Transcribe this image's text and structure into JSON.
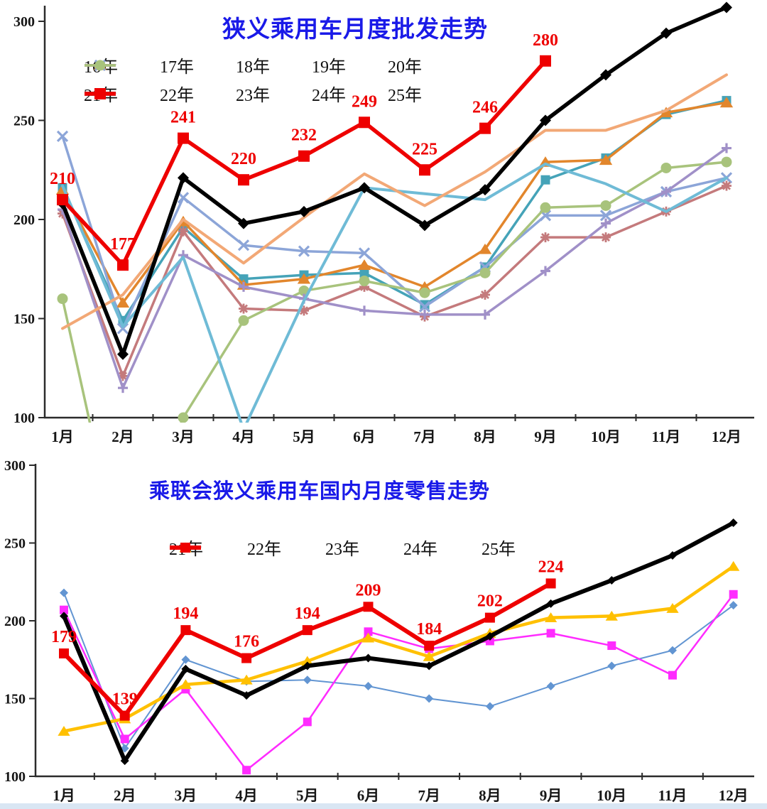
{
  "footer_bar_color": "#d9e6f3",
  "charts": [
    {
      "title": "狭义乘用车月度批发走势",
      "title_color": "#1a1ae8",
      "label_color": "#ee0000",
      "months": [
        "1月",
        "2月",
        "3月",
        "4月",
        "5月",
        "6月",
        "7月",
        "8月",
        "9月",
        "10月",
        "11月",
        "12月"
      ],
      "y_ticks": [
        100,
        150,
        200,
        250,
        300
      ],
      "series": [
        {
          "name": "16年",
          "color": "#45a3b8",
          "marker": "square",
          "msize": 6.5,
          "width": 3.5,
          "values": [
            216,
            149,
            196,
            170,
            172,
            173,
            157,
            176,
            220,
            231,
            253,
            260
          ]
        },
        {
          "name": "17年",
          "color": "#e2862c",
          "marker": "triangle",
          "msize": 8,
          "width": 3.5,
          "values": [
            215,
            158,
            199,
            167,
            170,
            177,
            166,
            185,
            229,
            230,
            254,
            259
          ]
        },
        {
          "name": "18年",
          "color": "#8ca5d8",
          "marker": "x",
          "msize": 7,
          "width": 3.5,
          "values": [
            242,
            145,
            211,
            187,
            184,
            183,
            156,
            176,
            202,
            202,
            214,
            221
          ]
        },
        {
          "name": "19年",
          "color": "#c47a7c",
          "marker": "asterisk",
          "msize": 7,
          "width": 3.5,
          "values": [
            203,
            121,
            194,
            155,
            154,
            166,
            151,
            162,
            191,
            191,
            204,
            217
          ]
        },
        {
          "name": "20年",
          "color": "#a8c37c",
          "marker": "circle",
          "msize": 7.5,
          "width": 3.5,
          "values": [
            160,
            22,
            100,
            149,
            164,
            169,
            163,
            173,
            206,
            207,
            226,
            229
          ]
        },
        {
          "name": "21年",
          "color": "#a090c8",
          "marker": "plus",
          "msize": 7,
          "width": 3.5,
          "values": [
            205,
            115,
            182,
            166,
            160,
            154,
            152,
            152,
            174,
            198,
            214,
            236
          ]
        },
        {
          "name": "22年",
          "color": "#6fbbd6",
          "marker": "none",
          "msize": 0,
          "width": 4,
          "values": [
            217,
            146,
            181,
            94,
            159,
            216,
            213,
            210,
            228,
            218,
            204,
            221
          ]
        },
        {
          "name": "23年",
          "color": "#f2a876",
          "marker": "none",
          "msize": 0,
          "width": 4,
          "values": [
            145,
            162,
            200,
            178,
            201,
            223,
            207,
            224,
            245,
            245,
            255,
            273
          ]
        },
        {
          "name": "24年",
          "color": "#000000",
          "marker": "diamond",
          "msize": 8,
          "width": 5.5,
          "values": [
            208,
            132,
            221,
            198,
            204,
            216,
            197,
            215,
            250,
            273,
            294,
            307
          ]
        },
        {
          "name": "25年",
          "color": "#ee0000",
          "marker": "square",
          "msize": 8,
          "width": 5.5,
          "labeled": true,
          "values": [
            210,
            177,
            241,
            220,
            232,
            249,
            225,
            246,
            280,
            null,
            null,
            null
          ]
        }
      ],
      "legend_rows": [
        [
          0,
          1,
          2,
          3,
          4
        ],
        [
          5,
          6,
          7,
          8,
          9
        ]
      ]
    },
    {
      "title": "乘联会狭义乘用车国内月度零售走势",
      "title_color": "#1a1ae8",
      "label_color": "#ee0000",
      "months": [
        "1月",
        "2月",
        "3月",
        "4月",
        "5月",
        "6月",
        "7月",
        "8月",
        "9月",
        "10月",
        "11月",
        "12月"
      ],
      "y_ticks": [
        100,
        150,
        200,
        250,
        300
      ],
      "series": [
        {
          "name": "21年",
          "color": "#6295d2",
          "marker": "diamond",
          "msize": 6,
          "width": 2,
          "values": [
            218,
            118,
            175,
            161,
            162,
            158,
            150,
            145,
            158,
            171,
            181,
            210
          ]
        },
        {
          "name": "22年",
          "color": "#ff2bff",
          "marker": "square",
          "msize": 6,
          "width": 2.5,
          "values": [
            207,
            124,
            156,
            104,
            135,
            193,
            182,
            187,
            192,
            184,
            165,
            217
          ]
        },
        {
          "name": "23年",
          "color": "#ffc000",
          "marker": "triangle",
          "msize": 7.5,
          "width": 4.5,
          "values": [
            129,
            137,
            159,
            162,
            174,
            189,
            177,
            192,
            202,
            203,
            208,
            235
          ]
        },
        {
          "name": "24年",
          "color": "#000000",
          "marker": "diamond",
          "msize": 6,
          "width": 6,
          "values": [
            203,
            110,
            169,
            152,
            171,
            176,
            171,
            190,
            211,
            226,
            242,
            263
          ]
        },
        {
          "name": "25年",
          "color": "#ee0000",
          "marker": "square",
          "msize": 7,
          "width": 6,
          "labeled": true,
          "values": [
            179,
            139,
            194,
            176,
            194,
            209,
            184,
            202,
            224,
            null,
            null,
            null
          ]
        }
      ],
      "legend_rows": [
        [
          0,
          1,
          2,
          3,
          4
        ]
      ]
    }
  ]
}
